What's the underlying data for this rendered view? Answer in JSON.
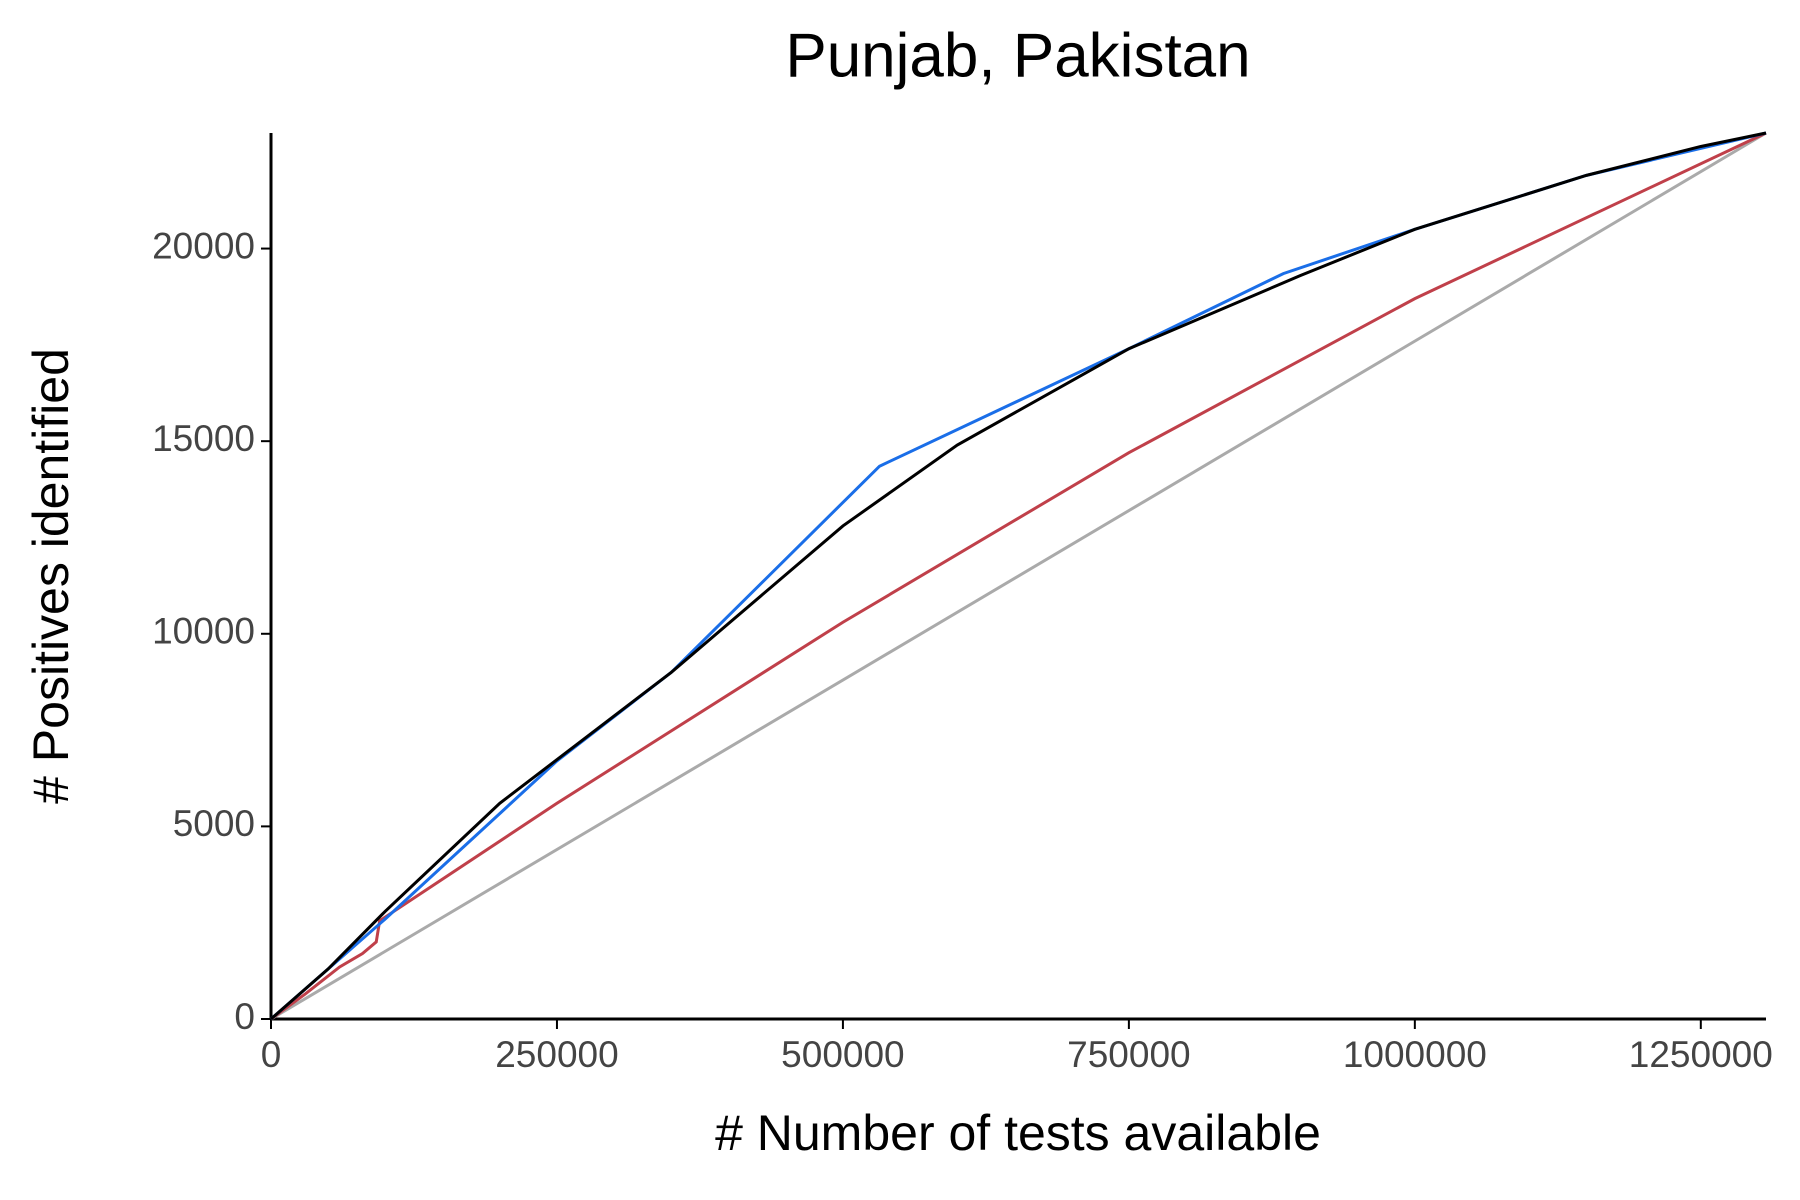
{
  "chart_data": {
    "type": "line",
    "title": "Punjab, Pakistan",
    "x_label": "# Number of tests available",
    "y_label": "# Positives identified",
    "xlim": [
      0,
      1307000
    ],
    "ylim": [
      0,
      23000
    ],
    "xticks": [
      0,
      250000,
      500000,
      750000,
      1000000,
      1250000
    ],
    "yticks": [
      0,
      5000,
      10000,
      15000,
      20000
    ],
    "grid": false,
    "series": [
      {
        "color": "#aaaaaa",
        "x": [
          0,
          1307000
        ],
        "values": [
          0,
          23000
        ]
      },
      {
        "color": "#c0404a",
        "x": [
          0,
          30000,
          60000,
          80000,
          92000,
          95000,
          250000,
          500000,
          750000,
          1000000,
          1307000
        ],
        "values": [
          0,
          650,
          1350,
          1700,
          2000,
          2550,
          5600,
          10300,
          14700,
          18700,
          23000
        ]
      },
      {
        "color": "#1a6ee8",
        "x": [
          0,
          100000,
          250000,
          350000,
          532000,
          750000,
          885000,
          1000000,
          1150000,
          1307000
        ],
        "values": [
          0,
          2600,
          6700,
          9000,
          14350,
          17400,
          19350,
          20500,
          21900,
          23000
        ]
      },
      {
        "color": "#000000",
        "x": [
          0,
          50000,
          100000,
          200000,
          350000,
          500000,
          600000,
          750000,
          900000,
          1000000,
          1150000,
          1250000,
          1307000
        ],
        "values": [
          0,
          1300,
          2800,
          5600,
          9000,
          12800,
          14900,
          17400,
          19300,
          20500,
          21900,
          22650,
          23000
        ]
      }
    ]
  }
}
